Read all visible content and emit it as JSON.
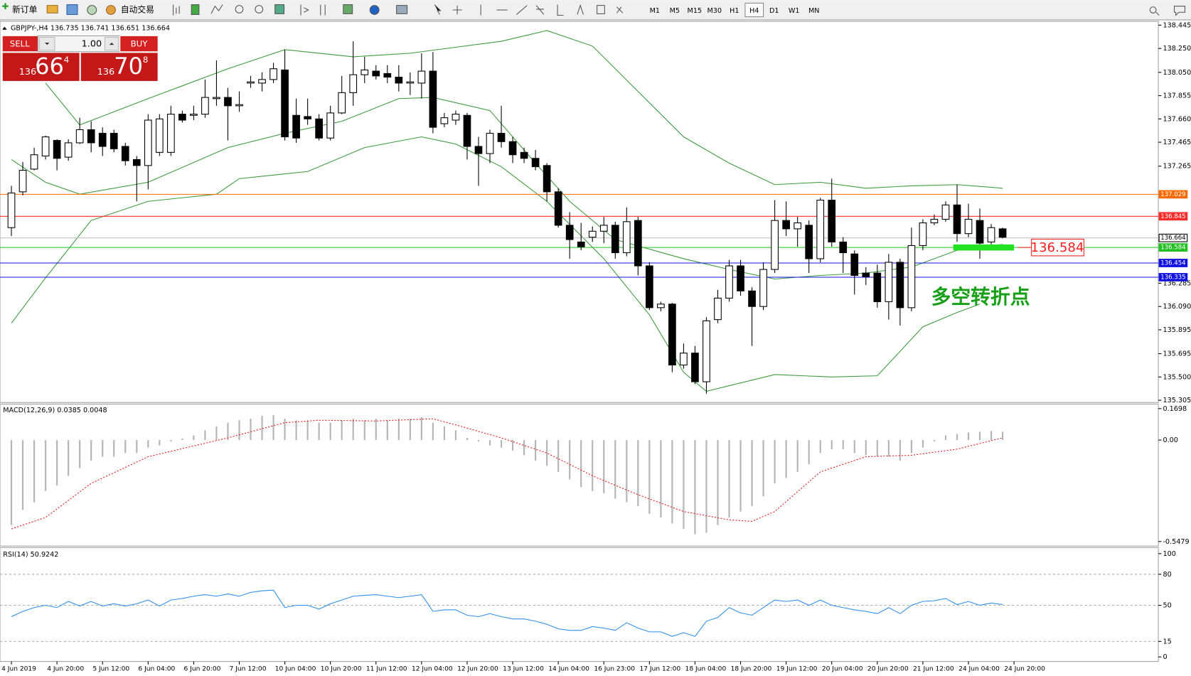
{
  "toolbar": {
    "new_order": "新订单",
    "auto_trading": "自动交易",
    "timeframes": [
      "M1",
      "M5",
      "M15",
      "M30",
      "H1",
      "H4",
      "D1",
      "W1",
      "MN"
    ],
    "active_timeframe": 5
  },
  "trade_panel": {
    "sell": "SELL",
    "buy": "BUY",
    "lot": "1.00",
    "sell_price": [
      "136",
      "66",
      "4"
    ],
    "buy_price": [
      "136",
      "70",
      "8"
    ]
  },
  "chart_data": {
    "type": "candlestick",
    "header": "GBPJPY-,H4  136.735 136.741 136.651 136.664",
    "ylim": [
      135.305,
      138.445
    ],
    "yticks": [
      138.445,
      {
        "value": 138.25,
        "label": "138.250"
      },
      {
        "value": 138.05,
        "label": "138.050"
      },
      137.855,
      {
        "value": 137.66,
        "label": "137.660"
      },
      137.465,
      137.265,
      136.285,
      {
        "value": 136.09,
        "label": "136.090"
      },
      135.895,
      135.695,
      {
        "value": 135.5,
        "label": "135.500"
      },
      135.305
    ],
    "open": [
      136.75,
      137.05,
      137.24,
      137.35,
      137.48,
      137.34,
      137.46,
      137.57,
      137.54,
      137.54,
      137.43,
      137.32,
      137.27,
      137.38,
      137.38,
      137.7,
      137.69,
      137.7,
      137.83,
      137.84,
      137.77,
      137.96,
      137.96,
      137.99,
      138.07,
      137.69,
      137.68,
      137.66,
      137.5,
      137.71,
      137.88,
      138.03,
      138.06,
      138.04,
      138.01,
      137.96,
      137.96,
      138.06,
      137.62,
      137.65,
      137.69,
      137.43,
      137.37,
      137.54,
      137.47,
      137.38,
      137.33,
      137.27,
      137.05,
      136.77,
      136.63,
      136.67,
      136.72,
      136.77,
      136.54,
      136.81,
      136.43,
      136.08,
      136.11,
      135.6,
      135.7,
      135.46,
      135.98,
      136.16,
      136.43,
      136.22,
      136.09,
      136.4,
      136.81,
      136.74,
      136.77,
      136.49,
      136.98,
      136.63,
      136.53,
      136.37,
      136.37,
      136.13,
      136.46,
      136.08,
      136.6,
      136.79,
      136.82,
      136.94,
      136.7,
      136.81,
      136.63,
      136.74
    ],
    "high": [
      137.1,
      137.3,
      137.42,
      137.52,
      137.49,
      137.49,
      137.67,
      137.64,
      137.59,
      137.57,
      137.46,
      137.35,
      137.7,
      137.7,
      137.77,
      137.73,
      137.77,
      137.99,
      138.15,
      137.92,
      137.89,
      138.02,
      138.05,
      138.13,
      138.24,
      137.83,
      137.83,
      137.7,
      137.77,
      138.02,
      138.31,
      138.18,
      138.11,
      138.11,
      138.11,
      138.05,
      138.21,
      138.22,
      137.71,
      137.73,
      137.71,
      137.51,
      137.57,
      137.77,
      137.51,
      137.42,
      137.4,
      137.29,
      137.08,
      136.88,
      136.79,
      136.76,
      136.84,
      136.8,
      136.92,
      136.84,
      136.46,
      136.13,
      136.12,
      135.78,
      135.76,
      136.0,
      136.23,
      136.48,
      136.48,
      136.25,
      136.46,
      136.98,
      136.97,
      136.84,
      136.81,
      137.0,
      137.16,
      136.67,
      136.56,
      136.42,
      136.44,
      136.53,
      136.49,
      136.75,
      136.82,
      136.86,
      136.97,
      137.11,
      136.95,
      136.91,
      136.78,
      136.75
    ],
    "low": [
      136.68,
      137.02,
      137.23,
      137.32,
      137.23,
      137.31,
      137.45,
      137.38,
      137.35,
      137.38,
      137.27,
      136.97,
      137.07,
      137.35,
      137.35,
      137.63,
      137.65,
      137.67,
      137.77,
      137.48,
      137.72,
      137.92,
      137.89,
      137.96,
      137.48,
      137.46,
      137.61,
      137.48,
      137.48,
      137.7,
      137.77,
      137.96,
      137.99,
      137.96,
      137.89,
      137.86,
      137.83,
      137.54,
      137.59,
      137.61,
      137.32,
      137.1,
      137.29,
      137.42,
      137.29,
      137.29,
      137.23,
      136.97,
      136.75,
      136.49,
      136.56,
      136.63,
      136.62,
      136.49,
      136.51,
      136.35,
      136.06,
      136.05,
      135.54,
      135.57,
      135.44,
      135.36,
      135.95,
      136.13,
      136.18,
      135.76,
      136.06,
      136.37,
      136.68,
      136.59,
      136.37,
      136.46,
      136.59,
      136.37,
      136.19,
      136.27,
      136.08,
      135.98,
      135.93,
      136.05,
      136.56,
      136.77,
      136.8,
      136.63,
      136.67,
      136.49,
      136.61,
      136.66
    ],
    "close": [
      137.04,
      137.23,
      137.36,
      137.51,
      137.33,
      137.46,
      137.57,
      137.46,
      137.43,
      137.41,
      137.31,
      137.27,
      137.65,
      137.66,
      137.7,
      137.65,
      137.7,
      137.84,
      137.84,
      137.77,
      137.78,
      137.97,
      137.99,
      138.08,
      137.51,
      137.5,
      137.66,
      137.5,
      137.71,
      137.88,
      138.03,
      138.07,
      138.02,
      138.01,
      137.96,
      137.97,
      138.06,
      137.59,
      137.67,
      137.7,
      137.43,
      137.37,
      137.54,
      137.47,
      137.36,
      137.33,
      137.26,
      137.05,
      136.77,
      136.65,
      136.59,
      136.72,
      136.77,
      136.54,
      136.8,
      136.43,
      136.08,
      136.11,
      135.6,
      135.7,
      135.46,
      135.97,
      136.16,
      136.43,
      136.22,
      136.09,
      136.4,
      136.81,
      136.74,
      136.79,
      136.49,
      136.98,
      136.63,
      136.54,
      136.35,
      136.34,
      136.13,
      136.46,
      136.08,
      136.6,
      136.79,
      136.82,
      136.94,
      136.7,
      136.82,
      136.62,
      136.75,
      136.67
    ],
    "bands": [
      {
        "color": "#3c9a3c",
        "x": [
          3,
          6,
          12,
          19,
          24,
          30,
          35,
          43,
          47,
          51,
          55,
          59,
          63,
          67,
          71,
          75,
          79,
          83,
          87
        ],
        "values": [
          137.96,
          137.61,
          137.83,
          138.08,
          138.24,
          138.18,
          138.21,
          138.31,
          138.4,
          138.27,
          137.89,
          137.51,
          137.29,
          137.11,
          137.13,
          137.08,
          137.1,
          137.11,
          137.08
        ]
      },
      {
        "color": "#3c9a3c",
        "x": [
          0,
          3,
          6,
          12,
          19,
          24,
          29,
          34,
          37,
          42,
          46,
          49,
          53,
          59,
          63,
          67,
          71,
          75,
          79,
          83,
          87
        ],
        "values": [
          137.32,
          137.13,
          137.03,
          137.13,
          137.42,
          137.54,
          137.64,
          137.83,
          137.84,
          137.73,
          137.29,
          136.97,
          136.65,
          136.49,
          136.4,
          136.32,
          136.35,
          136.37,
          136.42,
          136.56,
          136.61
        ]
      },
      {
        "color": "#3c9a3c",
        "x": [
          0,
          3,
          7,
          12,
          18,
          20,
          26,
          31,
          36,
          39,
          43,
          47,
          52,
          56,
          59,
          61,
          67,
          72,
          76,
          80,
          83,
          85
        ],
        "values": [
          135.95,
          136.33,
          136.81,
          136.97,
          137.03,
          137.16,
          137.22,
          137.42,
          137.51,
          137.45,
          137.26,
          136.97,
          136.49,
          136.02,
          135.54,
          135.38,
          135.52,
          135.5,
          135.51,
          135.92,
          136.04,
          136.11
        ]
      }
    ],
    "levels": [
      {
        "value": 137.029,
        "color": "#ff6a00"
      },
      {
        "value": 136.845,
        "color": "#ff2a2a"
      },
      {
        "value": 136.664,
        "color": "#c0c0c0"
      },
      {
        "value": 136.584,
        "color": "#22c022"
      },
      {
        "value": 136.454,
        "color": "#1010e0"
      },
      {
        "value": 136.335,
        "color": "#1010e0"
      }
    ],
    "annotation": {
      "text": "多空转折点",
      "color": "#18a018",
      "label": "136.584",
      "label_color": "#ff2020",
      "price": 136.584,
      "x": [
        83,
        88
      ]
    },
    "time_labels": [
      "4 Jun 2019",
      "4 Jun 20:00",
      "5 Jun 12:00",
      "6 Jun 04:00",
      "6 Jun 20:00",
      "7 Jun 12:00",
      "10 Jun 04:00",
      "10 Jun 20:00",
      "11 Jun 12:00",
      "12 Jun 04:00",
      "12 Jun 20:00",
      "13 Jun 12:00",
      "14 Jun 04:00",
      "16 Jun 23:00",
      "17 Jun 12:00",
      "18 Jun 04:00",
      "18 Jun 20:00",
      "19 Jun 12:00",
      "20 Jun 04:00",
      "20 Jun 20:00",
      "21 Jun 12:00",
      "24 Jun 04:00",
      "24 Jun 20:00"
    ],
    "macd": {
      "label": "MACD(12,26,9) 0.0385 0.0048",
      "ylim": [
        -0.5479,
        0.1698
      ],
      "yticks": [
        0.1698,
        {
          "value": 0,
          "label": "0.00"
        },
        -0.5479
      ],
      "hist_color": "#b4b4b4",
      "signal_color": "#e02020",
      "histogram": [
        -0.459,
        -0.377,
        -0.336,
        -0.275,
        -0.246,
        -0.193,
        -0.152,
        -0.111,
        -0.09,
        -0.09,
        -0.07,
        -0.07,
        -0.041,
        -0.029,
        -0.008,
        0.008,
        0.025,
        0.053,
        0.074,
        0.094,
        0.107,
        0.115,
        0.131,
        0.135,
        0.115,
        0.107,
        0.107,
        0.094,
        0.094,
        0.107,
        0.115,
        0.107,
        0.115,
        0.107,
        0.115,
        0.115,
        0.123,
        0.094,
        0.074,
        0.053,
        0.012,
        -0.008,
        -0.029,
        -0.041,
        -0.057,
        -0.082,
        -0.111,
        -0.139,
        -0.172,
        -0.213,
        -0.254,
        -0.275,
        -0.287,
        -0.316,
        -0.336,
        -0.357,
        -0.398,
        -0.418,
        -0.451,
        -0.48,
        -0.509,
        -0.5,
        -0.459,
        -0.418,
        -0.386,
        -0.357,
        -0.304,
        -0.234,
        -0.205,
        -0.172,
        -0.131,
        -0.07,
        -0.049,
        -0.049,
        -0.07,
        -0.082,
        -0.09,
        -0.09,
        -0.111,
        -0.07,
        -0.041,
        -0.008,
        0.025,
        0.033,
        0.041,
        0.045,
        0.049,
        0.045
      ],
      "signal_x": [
        0,
        3,
        7,
        12,
        19,
        24,
        27,
        32,
        37,
        39,
        43,
        47,
        51,
        55,
        59,
        63,
        65,
        67,
        71,
        75,
        79,
        83,
        87
      ],
      "signal": [
        -0.48,
        -0.418,
        -0.234,
        -0.09,
        0.012,
        0.094,
        0.107,
        0.103,
        0.115,
        0.082,
        0.012,
        -0.07,
        -0.193,
        -0.295,
        -0.386,
        -0.431,
        -0.439,
        -0.386,
        -0.172,
        -0.09,
        -0.082,
        -0.049,
        0.012
      ]
    },
    "rsi": {
      "label": "RSI(14) 50.9242",
      "ylim": [
        0,
        100
      ],
      "yticks": [
        100,
        80,
        50,
        15,
        0
      ],
      "color": "#2f8fe8",
      "values": [
        39.0,
        44.1,
        47.8,
        50.0,
        47.8,
        53.7,
        49.3,
        53.7,
        49.3,
        51.5,
        49.3,
        51.5,
        55.1,
        49.3,
        55.1,
        56.6,
        58.8,
        60.3,
        58.8,
        61.0,
        58.8,
        62.5,
        64.0,
        64.7,
        47.8,
        50.0,
        50.0,
        46.3,
        51.5,
        55.1,
        58.8,
        59.6,
        60.3,
        58.8,
        57.4,
        58.8,
        60.3,
        44.1,
        45.6,
        45.6,
        40.4,
        39.0,
        41.9,
        39.0,
        36.8,
        36.8,
        34.6,
        31.6,
        27.2,
        25.7,
        25.7,
        29.4,
        27.9,
        25.7,
        33.1,
        27.9,
        24.3,
        24.3,
        19.9,
        23.5,
        19.9,
        34.6,
        38.2,
        47.8,
        42.6,
        40.4,
        47.8,
        55.1,
        53.7,
        55.1,
        50.0,
        55.1,
        50.0,
        47.8,
        45.6,
        44.1,
        41.9,
        47.8,
        41.9,
        50.0,
        53.7,
        54.4,
        56.6,
        50.7,
        53.7,
        50.0,
        52.2,
        50.7
      ]
    }
  }
}
